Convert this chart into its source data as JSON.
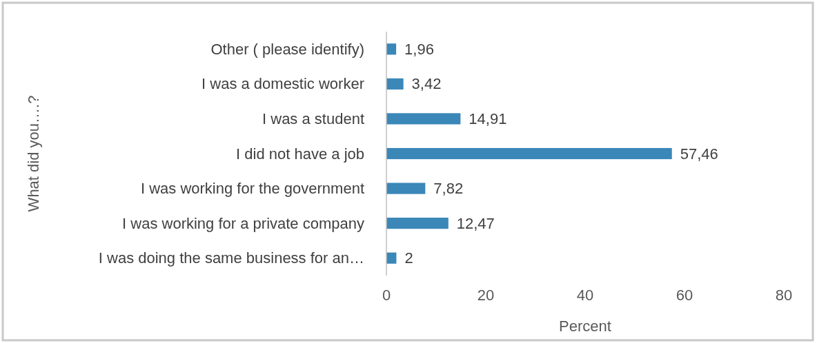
{
  "chart_data": {
    "type": "bar",
    "orientation": "horizontal",
    "xlabel": "Percent",
    "ylabel": "What did you….?",
    "categories": [
      "Other ( please identify)",
      "I was a domestic worker",
      "I was a student",
      "I did not have a job",
      "I was working for the government",
      "I was working for a private company",
      "I was doing the same business for an…"
    ],
    "values": [
      1.96,
      3.42,
      14.91,
      57.46,
      7.82,
      12.47,
      2
    ],
    "value_labels": [
      "1,96",
      "3,42",
      "14,91",
      "57,46",
      "7,82",
      "12,47",
      "2"
    ],
    "color": "#3a87b8",
    "xlim": [
      0,
      80
    ],
    "xticks": [
      0,
      20,
      40,
      60,
      80
    ]
  }
}
